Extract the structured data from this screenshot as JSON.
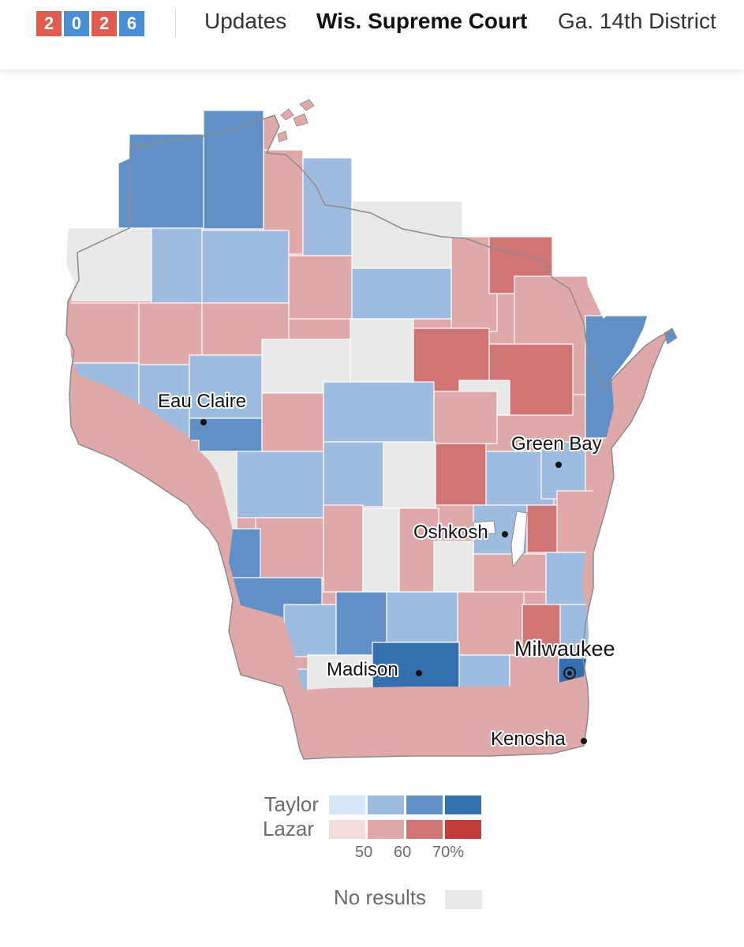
{
  "nav": {
    "logo_digits": [
      {
        "char": "2",
        "color": "#e05b50"
      },
      {
        "char": "0",
        "color": "#4a8fd6"
      },
      {
        "char": "2",
        "color": "#e05b50"
      },
      {
        "char": "6",
        "color": "#4a8fd6"
      }
    ],
    "items": [
      "Updates",
      "Wis. Supreme Court",
      "Ga. 14th District"
    ],
    "active_item": "Wis. Supreme Court"
  },
  "map": {
    "region": "Wisconsin counties",
    "cities": [
      "Eau Claire",
      "Green Bay",
      "Oshkosh",
      "Milwaukee",
      "Madison",
      "Kenosha"
    ],
    "colors": {
      "taylor": [
        "#d6e6f6",
        "#9dbcdf",
        "#6090c6",
        "#346fb0"
      ],
      "lazar": [
        "#f5dcdc",
        "#e0a9a9",
        "#d07474",
        "#c23b3b"
      ],
      "no_results": "#e9e9e9",
      "county_border": "#ffffff",
      "state_border": "#8c8c8c"
    }
  },
  "legend": {
    "taylor_label": "Taylor",
    "lazar_label": "Lazar",
    "ticks": [
      "50",
      "60",
      "70%"
    ],
    "no_results_label": "No results"
  }
}
